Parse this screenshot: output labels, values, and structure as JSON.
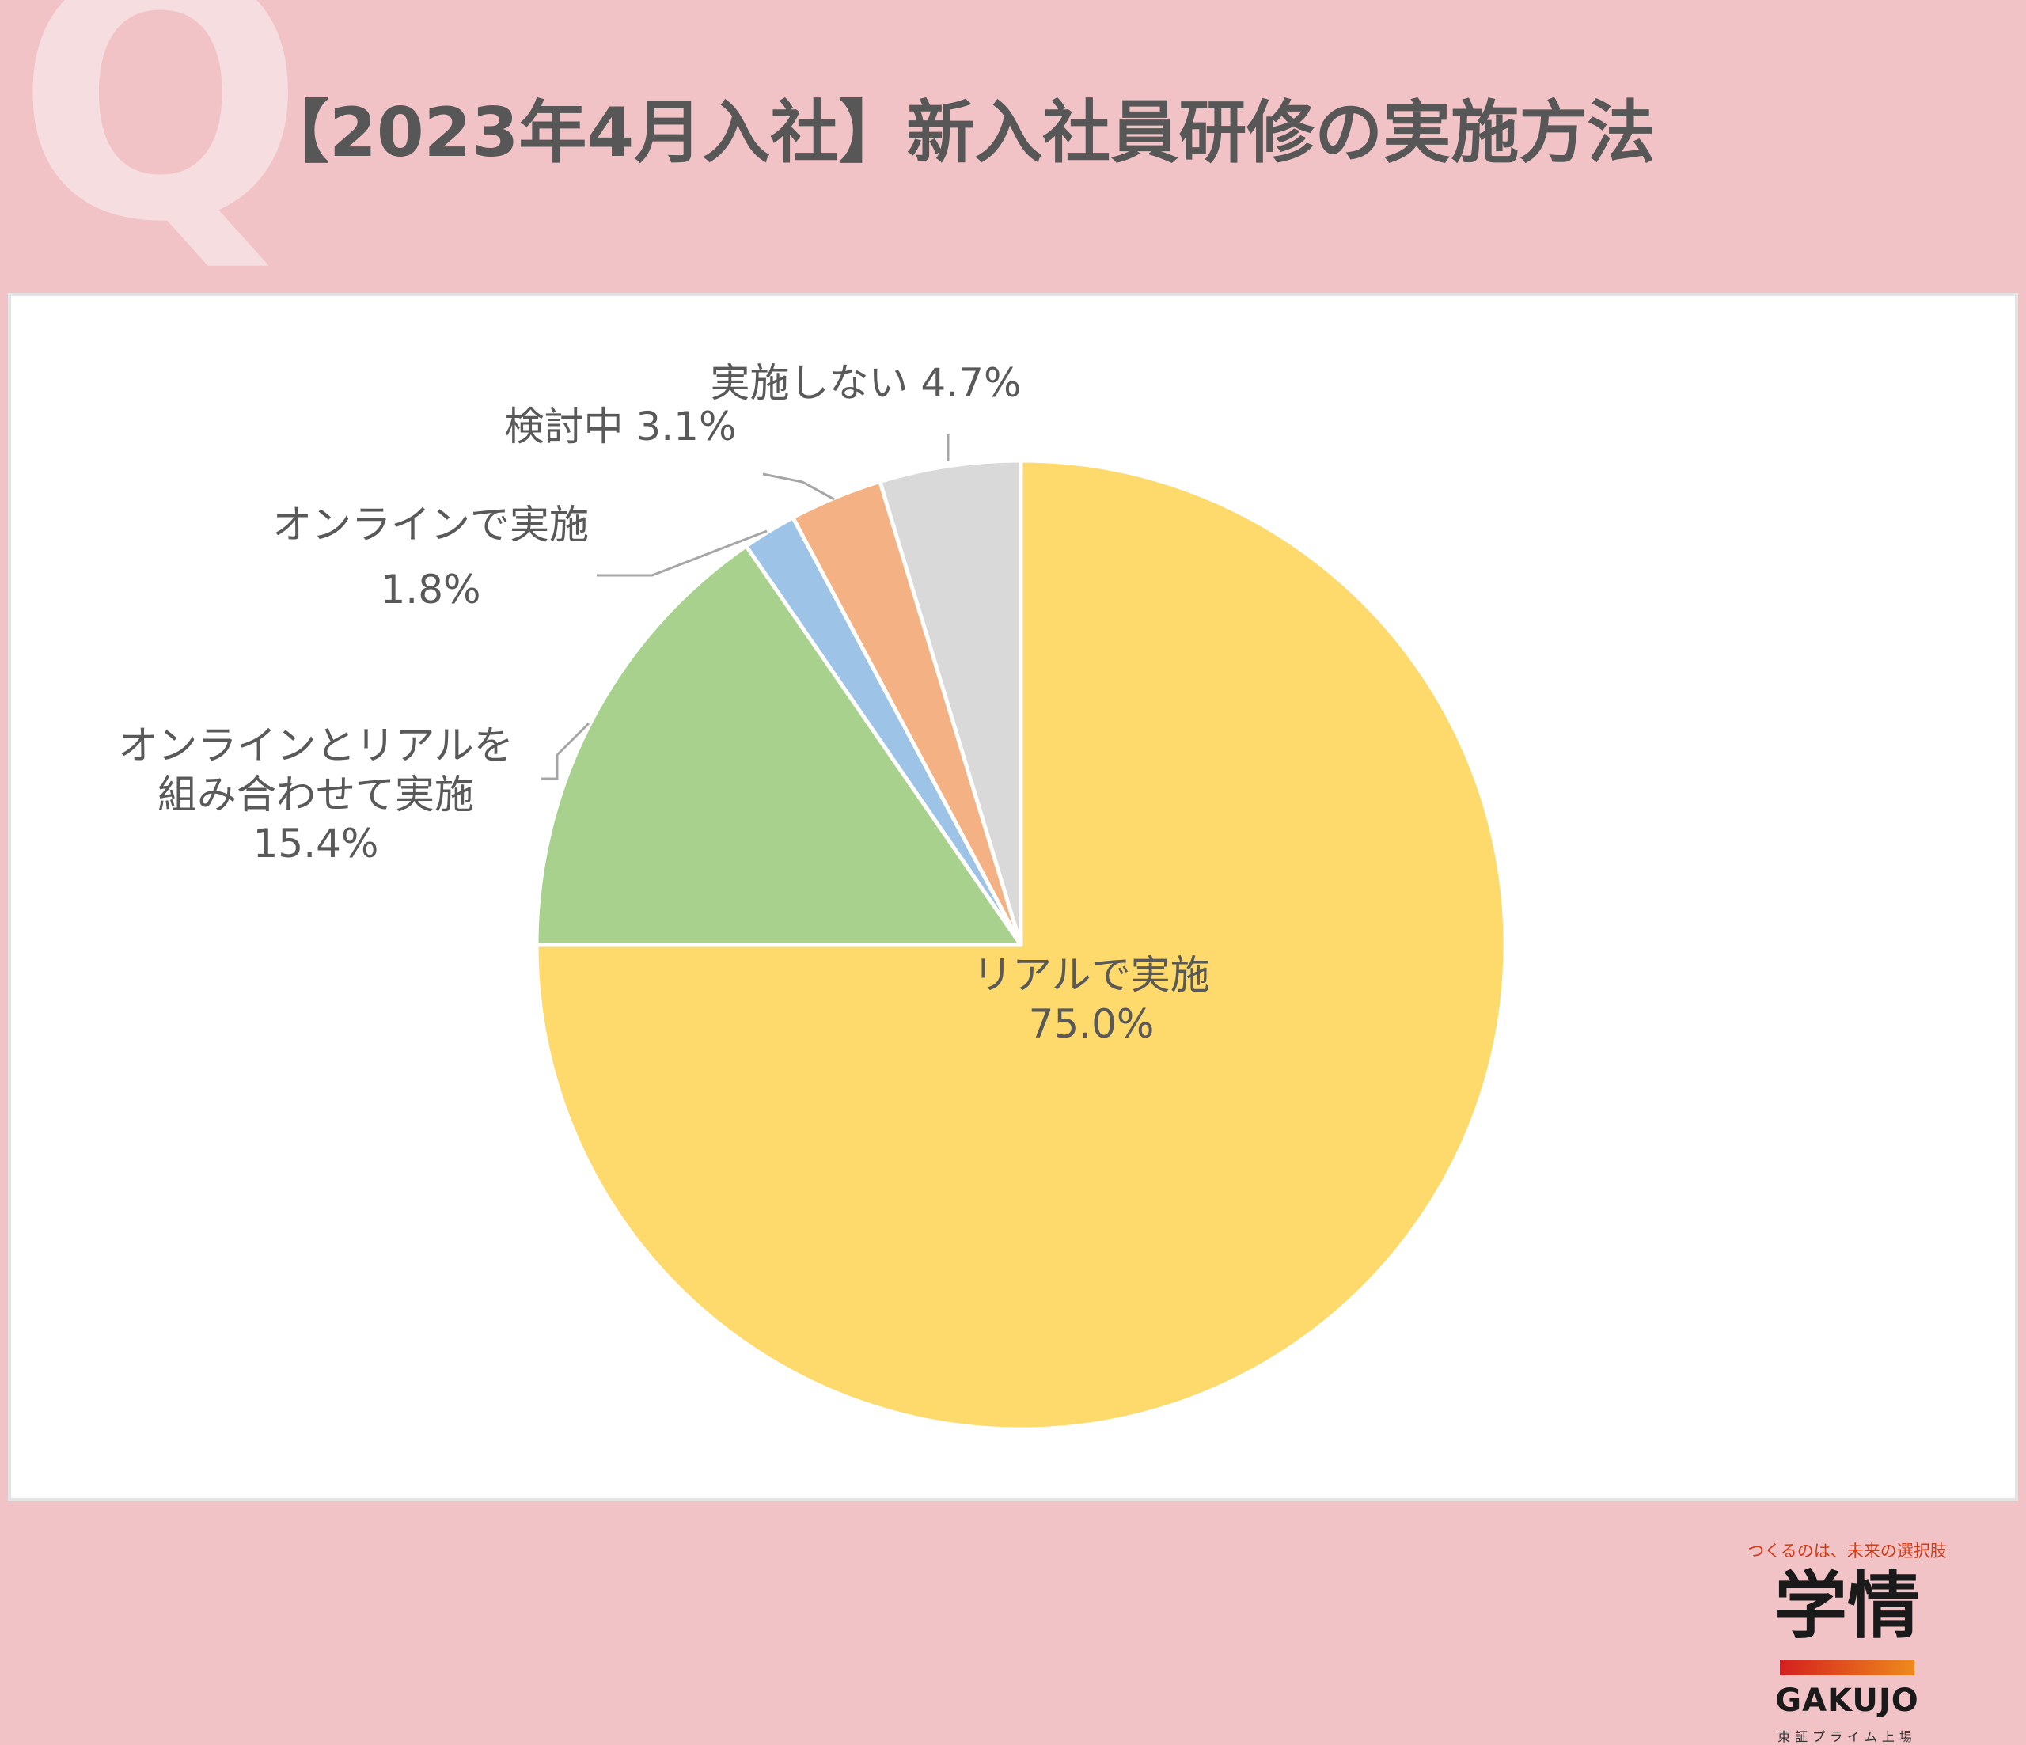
{
  "header": {
    "q_letter": "Q",
    "title": "【2023年4月入社】新入社員研修の実施方法"
  },
  "chart_data": {
    "type": "pie",
    "slices": [
      {
        "label": [
          "リアルで実施",
          "75.0%"
        ],
        "value": 75.0,
        "color": "#fed96b"
      },
      {
        "label": [
          "オンラインとリアルを",
          "組み合わせて実施",
          "15.4%"
        ],
        "value": 15.4,
        "color": "#a9d18e"
      },
      {
        "label": [
          "オンラインで実施",
          "1.8%"
        ],
        "value": 1.8,
        "color": "#9dc3e6"
      },
      {
        "label": [
          "検討中 3.1%"
        ],
        "value": 3.1,
        "color": "#f4b183"
      },
      {
        "label": [
          "実施しない 4.7%"
        ],
        "value": 4.7,
        "color": "#d9d9d9"
      }
    ],
    "start": "12 o'clock",
    "direction": "clockwise"
  },
  "brand": {
    "tagline": "つくるのは、未来の選択肢",
    "logo": "学情",
    "name": "GAKUJO",
    "sub": "東証プライム上場"
  }
}
